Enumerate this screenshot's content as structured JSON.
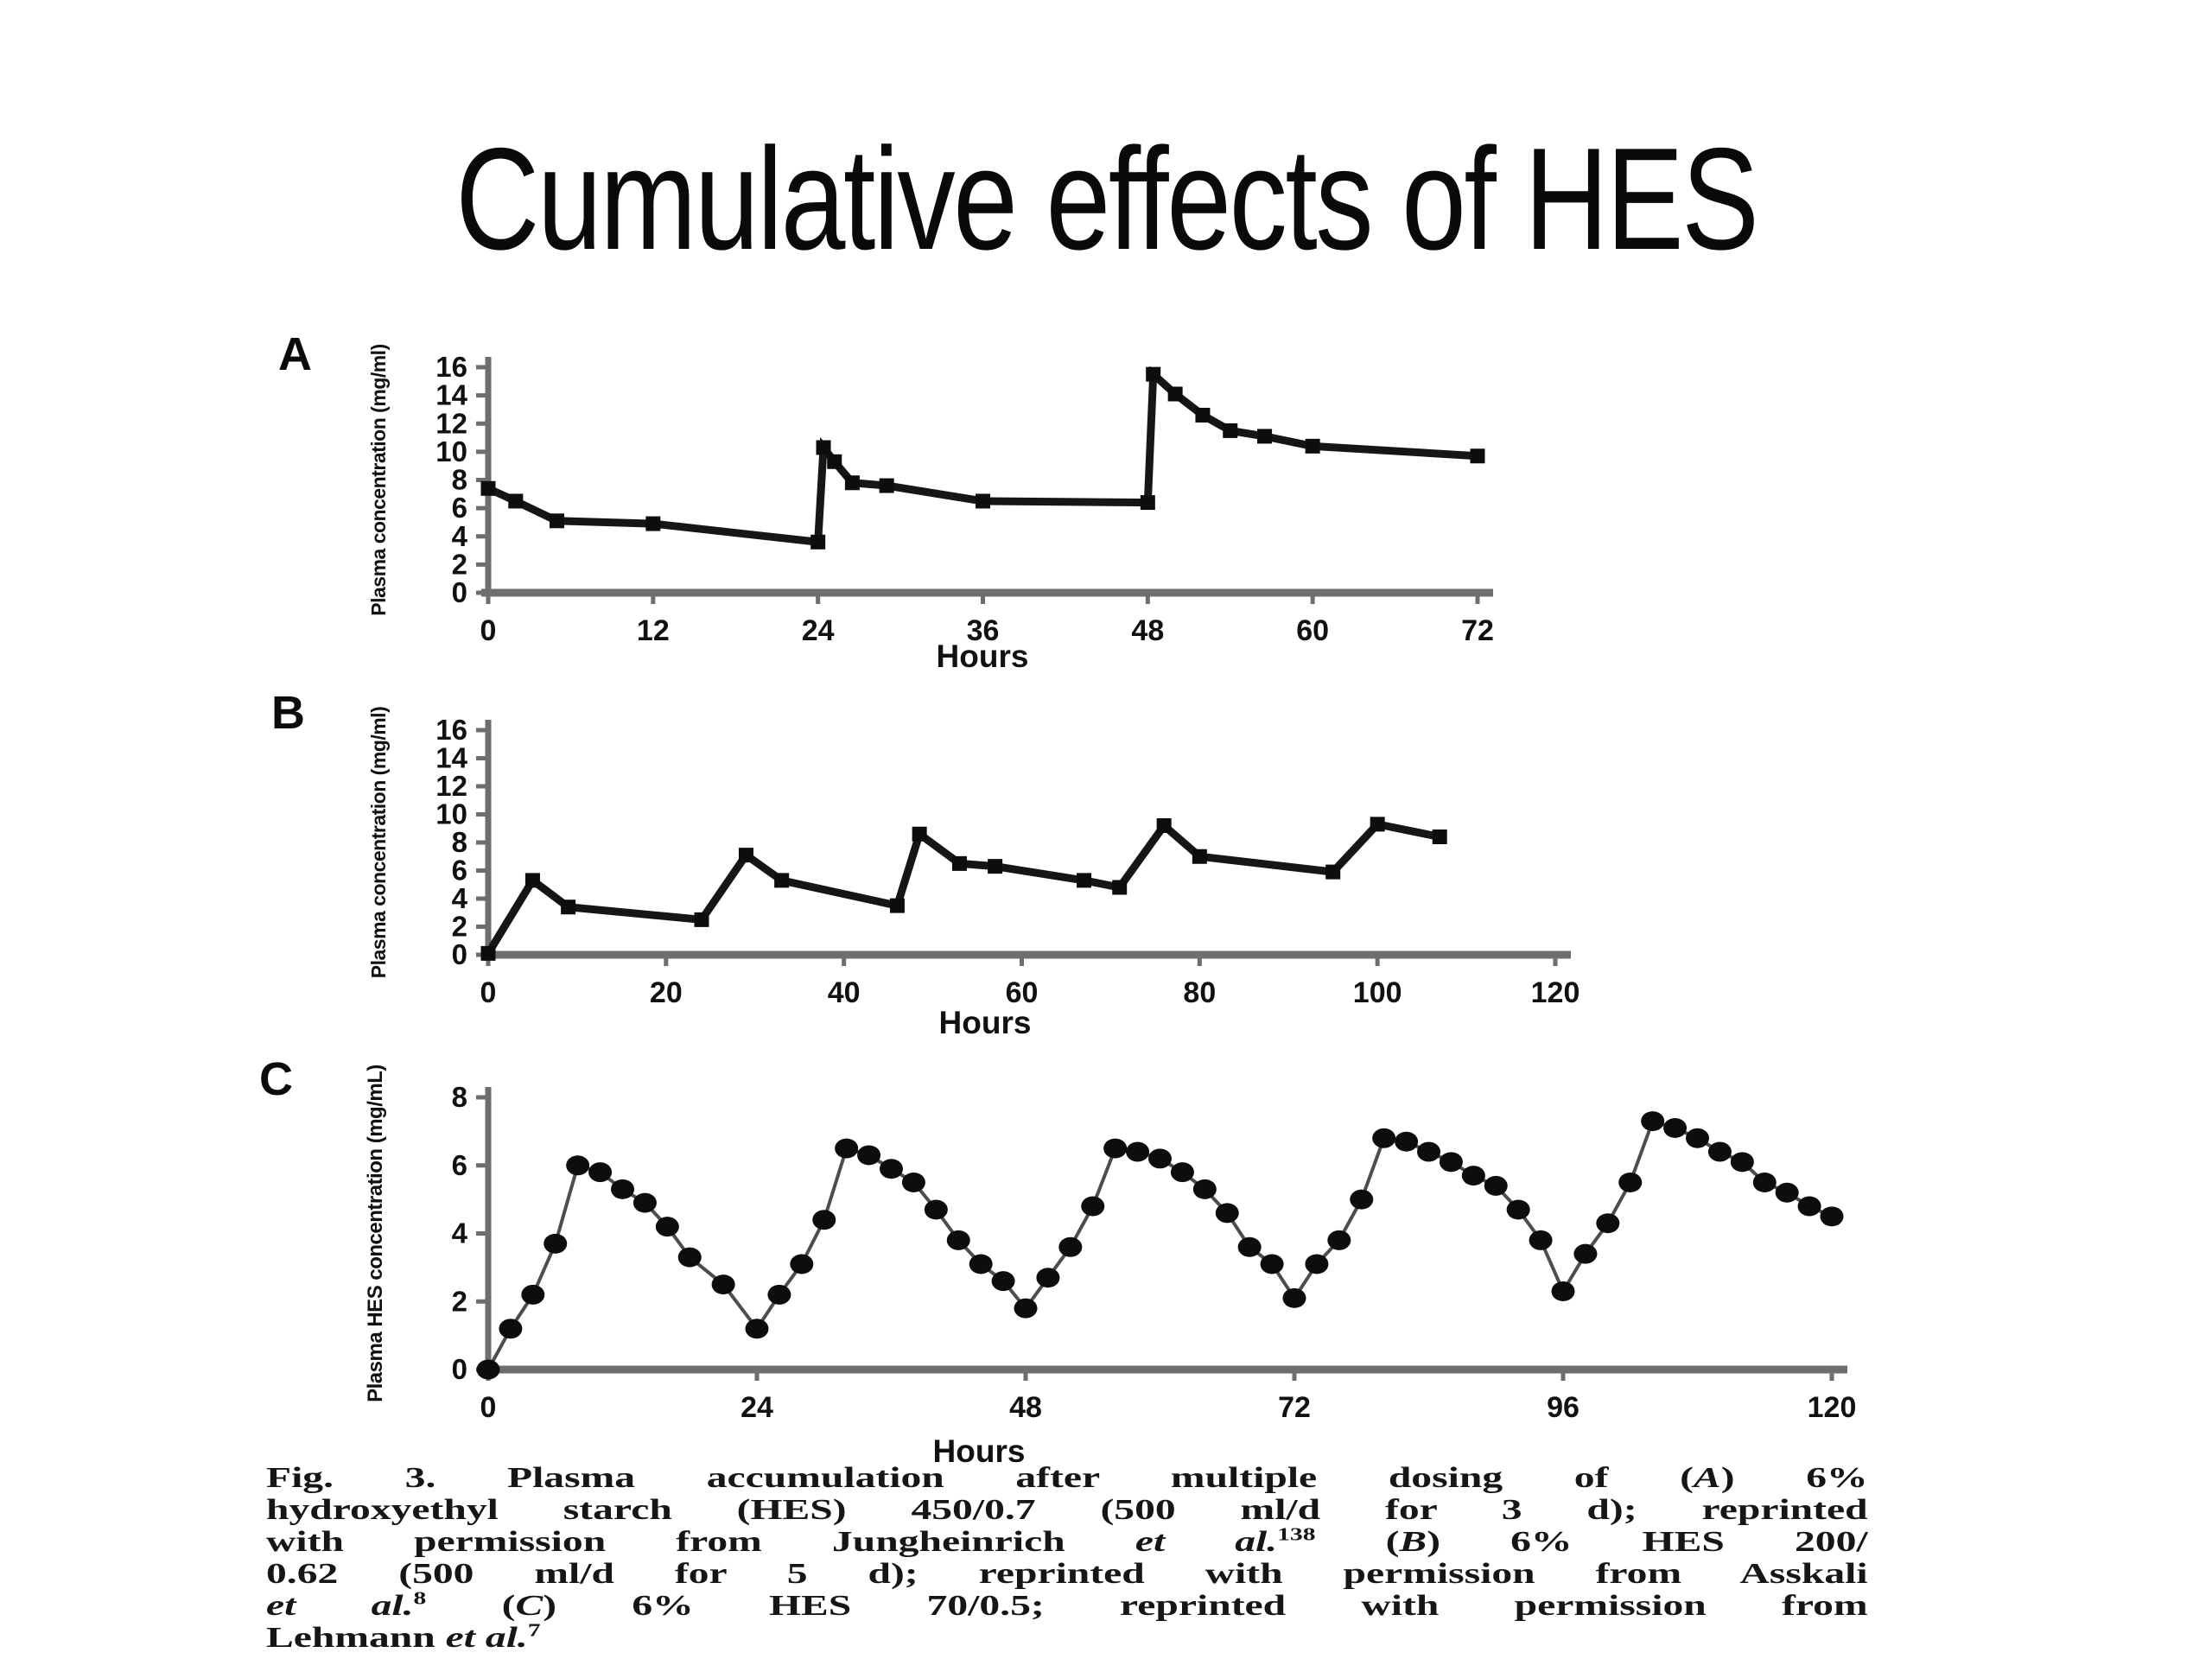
{
  "slide": {
    "title": "Cumulative effects of HES",
    "background": "#ffffff",
    "ink": "#111111",
    "axis_color": "#6e6e6e"
  },
  "chart_data": [
    {
      "panel_label": "A",
      "type": "line",
      "xlabel": "Hours",
      "ylabel": "Plasma concentration (mg/ml)",
      "xlim": [
        0,
        72
      ],
      "ylim": [
        0,
        16
      ],
      "xticks": [
        0,
        12,
        24,
        36,
        48,
        60,
        72
      ],
      "yticks": [
        0,
        2,
        4,
        6,
        8,
        10,
        12,
        14,
        16
      ],
      "legend": "none",
      "grid": false,
      "marker": "square",
      "points": [
        [
          0,
          7.4
        ],
        [
          2,
          6.5
        ],
        [
          5,
          5.1
        ],
        [
          12,
          4.9
        ],
        [
          24,
          3.6
        ],
        [
          24.4,
          10.3
        ],
        [
          25.2,
          9.3
        ],
        [
          26.5,
          7.8
        ],
        [
          29,
          7.6
        ],
        [
          36,
          6.5
        ],
        [
          48,
          6.4
        ],
        [
          48.4,
          15.5
        ],
        [
          50,
          14.1
        ],
        [
          52,
          12.6
        ],
        [
          54,
          11.5
        ],
        [
          56.5,
          11.1
        ],
        [
          60,
          10.4
        ],
        [
          72,
          9.7
        ]
      ]
    },
    {
      "panel_label": "B",
      "type": "line",
      "xlabel": "Hours",
      "ylabel": "Plasma concentration (mg/ml)",
      "xlim": [
        0,
        120
      ],
      "ylim": [
        0,
        16
      ],
      "xticks": [
        0,
        20,
        40,
        60,
        80,
        100,
        120
      ],
      "yticks": [
        0,
        2,
        4,
        6,
        8,
        10,
        12,
        14,
        16
      ],
      "legend": "none",
      "grid": false,
      "marker": "square",
      "points": [
        [
          0,
          0.1
        ],
        [
          5,
          5.3
        ],
        [
          9,
          3.4
        ],
        [
          24,
          2.5
        ],
        [
          29,
          7.1
        ],
        [
          33,
          5.3
        ],
        [
          46,
          3.5
        ],
        [
          48.5,
          8.6
        ],
        [
          53,
          6.5
        ],
        [
          57,
          6.3
        ],
        [
          67,
          5.3
        ],
        [
          71,
          4.8
        ],
        [
          76,
          9.2
        ],
        [
          80,
          7.0
        ],
        [
          95,
          5.9
        ],
        [
          100,
          9.3
        ],
        [
          107,
          8.4
        ]
      ]
    },
    {
      "panel_label": "C",
      "type": "scatter-line",
      "xlabel": "Hours",
      "ylabel": "Plasma HES concentration (mg/mL)",
      "xlim": [
        0,
        120
      ],
      "ylim": [
        0,
        8
      ],
      "xticks": [
        0,
        24,
        48,
        72,
        96,
        120
      ],
      "yticks": [
        0,
        2,
        4,
        6,
        8
      ],
      "legend": "none",
      "grid": false,
      "marker": "circle",
      "points": [
        [
          0,
          0
        ],
        [
          2,
          1.2
        ],
        [
          4,
          2.2
        ],
        [
          6,
          3.7
        ],
        [
          8,
          6.0
        ],
        [
          10,
          5.8
        ],
        [
          12,
          5.3
        ],
        [
          14,
          4.9
        ],
        [
          16,
          4.2
        ],
        [
          18,
          3.3
        ],
        [
          21,
          2.5
        ],
        [
          24,
          1.2
        ],
        [
          26,
          2.2
        ],
        [
          28,
          3.1
        ],
        [
          30,
          4.4
        ],
        [
          32,
          6.5
        ],
        [
          34,
          6.3
        ],
        [
          36,
          5.9
        ],
        [
          38,
          5.5
        ],
        [
          40,
          4.7
        ],
        [
          42,
          3.8
        ],
        [
          44,
          3.1
        ],
        [
          46,
          2.6
        ],
        [
          48,
          1.8
        ],
        [
          50,
          2.7
        ],
        [
          52,
          3.6
        ],
        [
          54,
          4.8
        ],
        [
          56,
          6.5
        ],
        [
          58,
          6.4
        ],
        [
          60,
          6.2
        ],
        [
          62,
          5.8
        ],
        [
          64,
          5.3
        ],
        [
          66,
          4.6
        ],
        [
          68,
          3.6
        ],
        [
          70,
          3.1
        ],
        [
          72,
          2.1
        ],
        [
          74,
          3.1
        ],
        [
          76,
          3.8
        ],
        [
          78,
          5.0
        ],
        [
          80,
          6.8
        ],
        [
          82,
          6.7
        ],
        [
          84,
          6.4
        ],
        [
          86,
          6.1
        ],
        [
          88,
          5.7
        ],
        [
          90,
          5.4
        ],
        [
          92,
          4.7
        ],
        [
          94,
          3.8
        ],
        [
          96,
          2.3
        ],
        [
          98,
          3.4
        ],
        [
          100,
          4.3
        ],
        [
          102,
          5.5
        ],
        [
          104,
          7.3
        ],
        [
          106,
          7.1
        ],
        [
          108,
          6.8
        ],
        [
          110,
          6.4
        ],
        [
          112,
          6.1
        ],
        [
          114,
          5.5
        ],
        [
          116,
          5.2
        ],
        [
          118,
          4.8
        ],
        [
          120,
          4.5
        ]
      ]
    }
  ],
  "caption": {
    "lines": [
      [
        {
          "t": "Fig. 3. Plasma accumulation after multiple dosing of ("
        },
        {
          "t": "A",
          "i": true
        },
        {
          "t": ") 6%"
        }
      ],
      [
        {
          "t": "hydroxyethyl starch (HES) 450/0.7 (500 ml/d for 3 d); reprinted"
        }
      ],
      [
        {
          "t": "with permission from Jungheinrich "
        },
        {
          "t": "et al.",
          "i": true
        },
        {
          "t": "138",
          "sup": true
        },
        {
          "t": " ("
        },
        {
          "t": "B",
          "i": true
        },
        {
          "t": ") 6% HES 200/"
        }
      ],
      [
        {
          "t": "0.62 (500 ml/d for 5 d); reprinted with permission from Asskali"
        }
      ],
      [
        {
          "t": "et al.",
          "i": true
        },
        {
          "t": "8",
          "sup": true
        },
        {
          "t": " ("
        },
        {
          "t": "C",
          "i": true
        },
        {
          "t": ") 6% HES 70/0.5; reprinted with permission from"
        }
      ],
      [
        {
          "t": "Lehmann "
        },
        {
          "t": "et al.",
          "i": true
        },
        {
          "t": "7",
          "sup": true
        }
      ]
    ]
  }
}
